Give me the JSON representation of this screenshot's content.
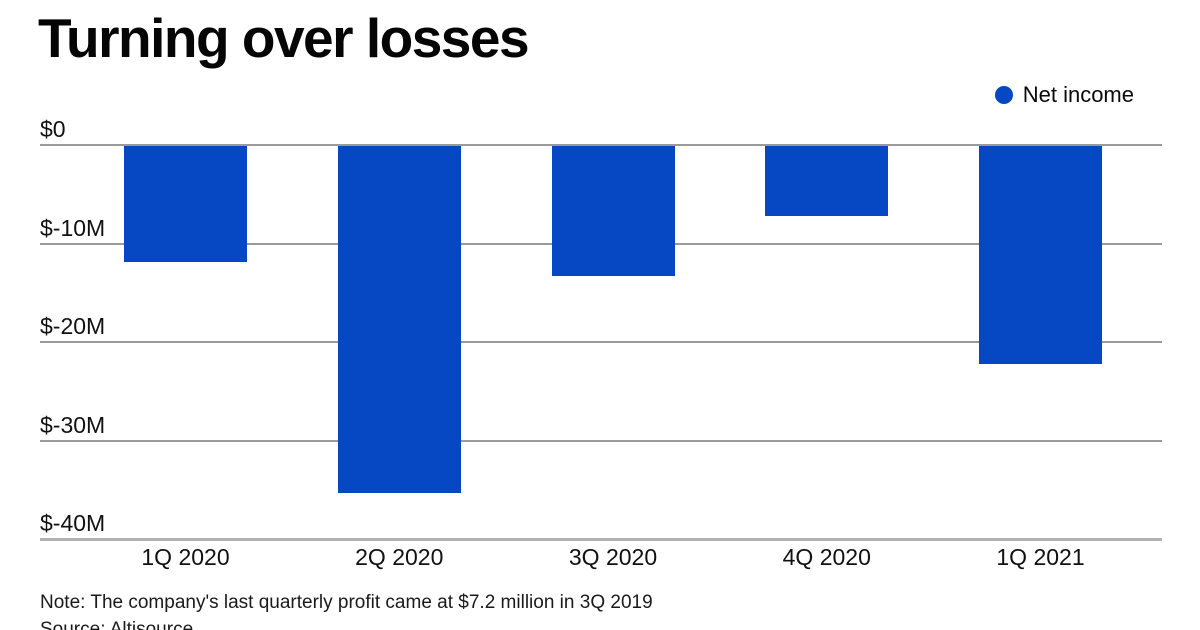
{
  "title": "Turning over losses",
  "legend": {
    "label": "Net income"
  },
  "note": "Note: The company's last quarterly profit came at $7.2 million in 3Q 2019",
  "source": "Source: Altisource",
  "colors": {
    "bar": "#0648C4",
    "legend_dot": "#0648C4",
    "gridline": "#9A9A9A",
    "axis_line": "#B2B2B2",
    "text": "#111111"
  },
  "chart_data": {
    "type": "bar",
    "title": "Turning over losses",
    "categories": [
      "1Q 2020",
      "2Q 2020",
      "3Q 2020",
      "4Q 2020",
      "1Q 2021"
    ],
    "series": [
      {
        "name": "Net income",
        "values": [
          -11.8,
          -35.2,
          -13.2,
          -7.1,
          -22.1
        ]
      }
    ],
    "unit": "USD millions",
    "y_ticks": [
      0,
      -10,
      -20,
      -30,
      -40
    ],
    "y_tick_labels": [
      "$0",
      "$-10M",
      "$-20M",
      "$-30M",
      "$-40M"
    ],
    "ylim": [
      -40,
      0
    ],
    "grid": true,
    "legend_position": "top-right",
    "annotations": [
      "Note: The company's last quarterly profit came at $7.2 million in 3Q 2019",
      "Source: Altisource"
    ]
  }
}
